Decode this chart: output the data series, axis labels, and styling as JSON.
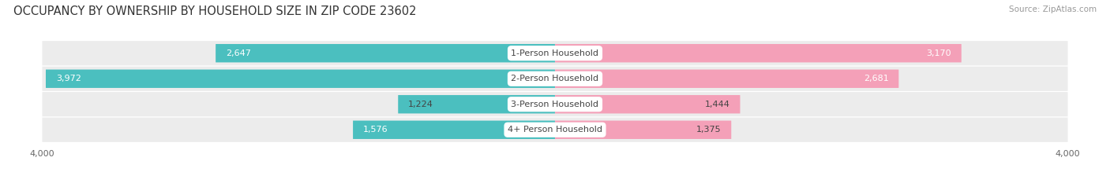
{
  "title": "OCCUPANCY BY OWNERSHIP BY HOUSEHOLD SIZE IN ZIP CODE 23602",
  "source": "Source: ZipAtlas.com",
  "categories": [
    "1-Person Household",
    "2-Person Household",
    "3-Person Household",
    "4+ Person Household"
  ],
  "owner_values": [
    2647,
    3972,
    1224,
    1576
  ],
  "renter_values": [
    3170,
    2681,
    1444,
    1375
  ],
  "owner_color": "#4bbfbf",
  "renter_color": "#f4a0b8",
  "axis_max": 4000,
  "row_bg_color": "#ececec",
  "bg_color": "#ffffff",
  "title_fontsize": 10.5,
  "source_fontsize": 7.5,
  "bar_label_fontsize": 8,
  "category_fontsize": 8,
  "axis_label_fontsize": 8,
  "legend_fontsize": 8
}
